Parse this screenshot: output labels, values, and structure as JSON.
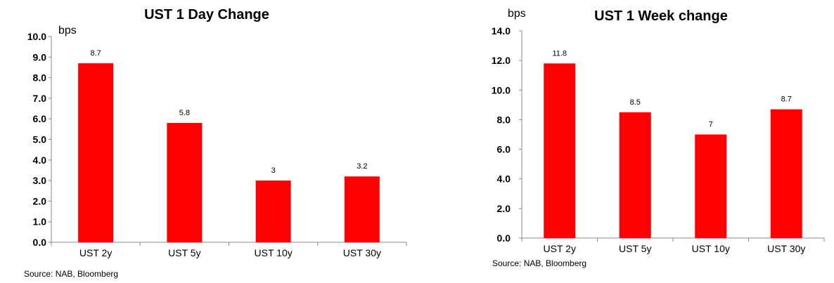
{
  "chart_data": [
    {
      "type": "bar",
      "title": "UST 1 Day Change",
      "ylabel": "bps",
      "categories": [
        "UST 2y",
        "UST 5y",
        "UST 10y",
        "UST 30y"
      ],
      "values": [
        8.7,
        5.8,
        3,
        3.2
      ],
      "value_labels": [
        "8.7",
        "5.8",
        "3",
        "3.2"
      ],
      "ylim": [
        0,
        10
      ],
      "yticks": [
        "0.0",
        "1.0",
        "2.0",
        "3.0",
        "4.0",
        "5.0",
        "6.0",
        "7.0",
        "8.0",
        "9.0",
        "10.0"
      ],
      "grid": false,
      "legend": "none",
      "bar_color": "#ff0000",
      "source": "Source: NAB, Bloomberg"
    },
    {
      "type": "bar",
      "title": "UST 1 Week change",
      "ylabel": "bps",
      "categories": [
        "UST 2y",
        "UST 5y",
        "UST 10y",
        "UST 30y"
      ],
      "values": [
        11.8,
        8.5,
        7,
        8.7
      ],
      "value_labels": [
        "11.8",
        "8.5",
        "7",
        "8.7"
      ],
      "ylim": [
        0,
        14
      ],
      "yticks": [
        "0.0",
        "2.0",
        "4.0",
        "6.0",
        "8.0",
        "10.0",
        "12.0",
        "14.0"
      ],
      "grid": false,
      "legend": "none",
      "bar_color": "#ff0000",
      "source": "Source: NAB, Bloomberg"
    }
  ]
}
